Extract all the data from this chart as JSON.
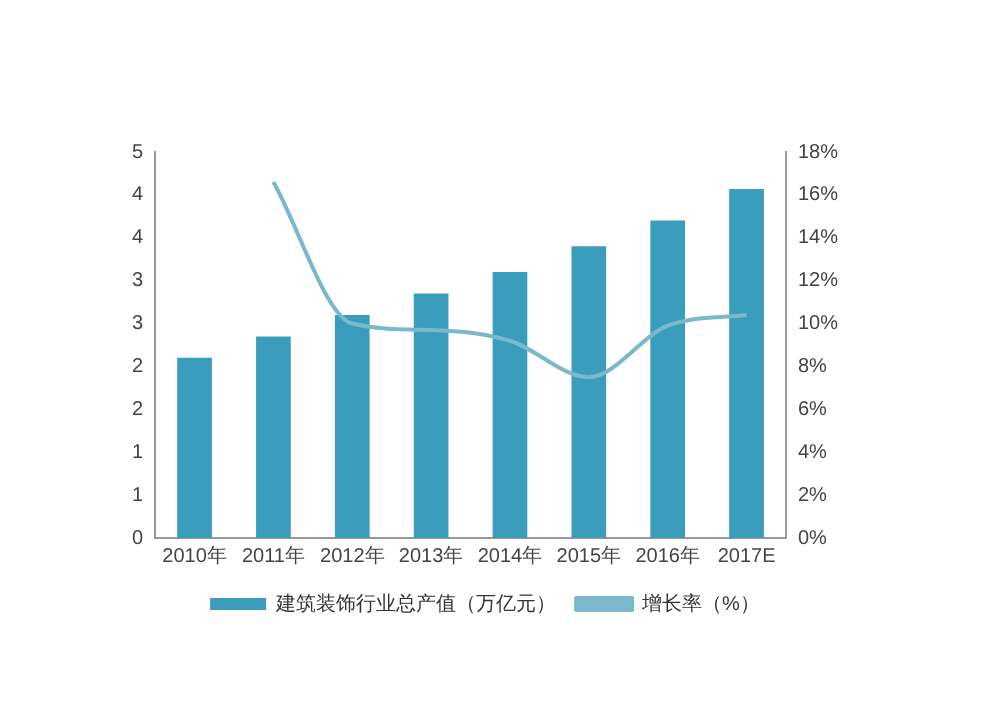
{
  "chart_data": {
    "type": "bar",
    "categories": [
      "2010年",
      "2011年",
      "2012年",
      "2013年",
      "2014年",
      "2015年",
      "2016年",
      "2017E"
    ],
    "series": [
      {
        "name": "建筑装饰行业总产值（万亿元）",
        "color": "#3a9dbb",
        "values": [
          2.1,
          2.35,
          2.6,
          2.85,
          3.1,
          3.4,
          3.7,
          4.07
        ]
      },
      {
        "name": "增长率（%）",
        "type": "line",
        "axis": "y2",
        "color": "#7ab8cc",
        "values": [
          null,
          16.6,
          10.0,
          9.7,
          9.2,
          7.5,
          9.9,
          10.4
        ]
      }
    ],
    "ylim": [
      0,
      4.5
    ],
    "yticks": [
      0,
      {
        "value": 0.5,
        "label": "1"
      },
      1,
      {
        "value": 1.5,
        "label": "2"
      },
      2,
      {
        "value": 2.5,
        "label": "3"
      },
      3,
      {
        "value": 3.5,
        "label": "4"
      },
      4,
      {
        "value": 4.5,
        "label": "5"
      }
    ],
    "y2lim": [
      0,
      18
    ],
    "y2ticks": [
      {
        "value": 0,
        "label": "0%"
      },
      {
        "value": 2,
        "label": "2%"
      },
      {
        "value": 4,
        "label": "4%"
      },
      {
        "value": 6,
        "label": "6%"
      },
      {
        "value": 8,
        "label": "8%"
      },
      {
        "value": 10,
        "label": "10%"
      },
      {
        "value": 12,
        "label": "12%"
      },
      {
        "value": 14,
        "label": "14%"
      },
      {
        "value": 16,
        "label": "16%"
      },
      {
        "value": 18,
        "label": "18%"
      }
    ],
    "grid": false,
    "legend": "bottom",
    "marker": "none",
    "line_style": "solid"
  }
}
